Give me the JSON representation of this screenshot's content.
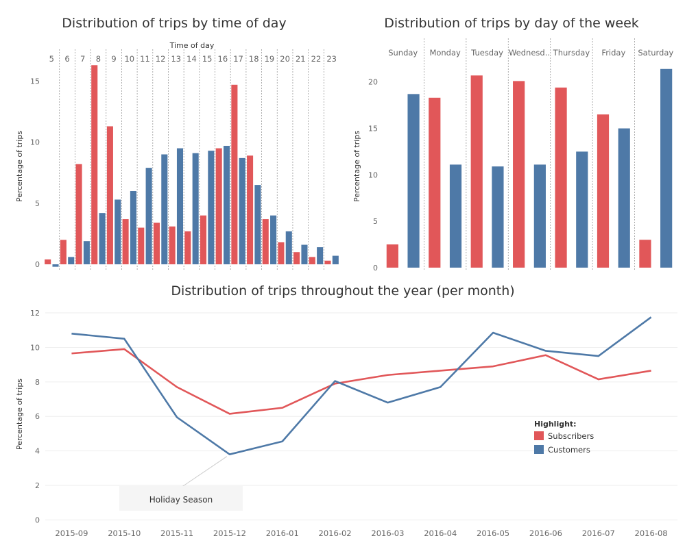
{
  "colors": {
    "subscribers": "#e15759",
    "customers": "#4e79a7"
  },
  "legend": {
    "title": "Highlight:",
    "items": [
      {
        "label": "Subscribers",
        "color": "#e15759"
      },
      {
        "label": "Customers",
        "color": "#4e79a7"
      }
    ]
  },
  "chart_data": [
    {
      "type": "bar",
      "title": "Distribution of trips by time of day",
      "xlabel": "Time of day",
      "ylabel": "Percentage of trips",
      "categories": [
        "5",
        "6",
        "7",
        "8",
        "9",
        "10",
        "11",
        "12",
        "13",
        "14",
        "15",
        "16",
        "17",
        "18",
        "19",
        "20",
        "21",
        "22",
        "23"
      ],
      "series": [
        {
          "color": "#e15759",
          "values": [
            0.4,
            2.0,
            8.2,
            16.3,
            11.3,
            3.7,
            3.0,
            3.4,
            3.1,
            2.7,
            4.0,
            9.5,
            14.7,
            8.9,
            3.7,
            1.8,
            1.0,
            0.6,
            0.3
          ]
        },
        {
          "color": "#4e79a7",
          "values": [
            -0.2,
            0.6,
            1.9,
            4.2,
            5.3,
            6.0,
            7.9,
            9.0,
            9.5,
            9.1,
            9.3,
            9.7,
            8.7,
            6.5,
            4.0,
            2.7,
            1.6,
            1.4,
            0.7
          ]
        }
      ],
      "yticks": [
        0,
        5,
        10,
        15
      ],
      "ylim": [
        -0.5,
        18.5
      ],
      "grid": false
    },
    {
      "type": "bar",
      "title": "Distribution of trips by day of the week",
      "ylabel": "Percentage of trips",
      "categories": [
        "Sunday",
        "Monday",
        "Tuesday",
        "Wednesd..",
        "Thursday",
        "Friday",
        "Saturday"
      ],
      "series": [
        {
          "color": "#e15759",
          "values": [
            2.5,
            18.3,
            20.7,
            20.1,
            19.4,
            16.5,
            3.0
          ]
        },
        {
          "color": "#4e79a7",
          "values": [
            18.7,
            11.1,
            10.9,
            11.1,
            12.5,
            15.0,
            21.4
          ]
        }
      ],
      "yticks": [
        0,
        5,
        10,
        15,
        20
      ],
      "ylim": [
        -0.3,
        24.7
      ],
      "grid": false
    },
    {
      "type": "line",
      "title": "Distribution of trips throughout the year (per month)",
      "ylabel": "Percentage of trips",
      "x": [
        "2015-09",
        "2015-10",
        "2015-11",
        "2015-12",
        "2016-01",
        "2016-02",
        "2016-03",
        "2016-04",
        "2016-05",
        "2016-06",
        "2016-07",
        "2016-08"
      ],
      "series": [
        {
          "name": "Subscribers",
          "color": "#e15759",
          "values": [
            9.65,
            9.9,
            7.7,
            6.15,
            6.5,
            7.9,
            8.4,
            8.65,
            8.9,
            9.55,
            8.15,
            8.65
          ]
        },
        {
          "name": "Customers",
          "color": "#4e79a7",
          "values": [
            10.8,
            10.5,
            5.95,
            3.8,
            4.55,
            8.05,
            6.8,
            7.7,
            10.85,
            9.8,
            9.5,
            11.75
          ]
        }
      ],
      "yticks": [
        0,
        2,
        4,
        6,
        8,
        10,
        12
      ],
      "ylim": [
        -0.3,
        12.2
      ],
      "grid": true,
      "legend": "right",
      "annotation": {
        "text": "Holiday Season",
        "x": "2015-12",
        "series": "Customers"
      }
    }
  ]
}
